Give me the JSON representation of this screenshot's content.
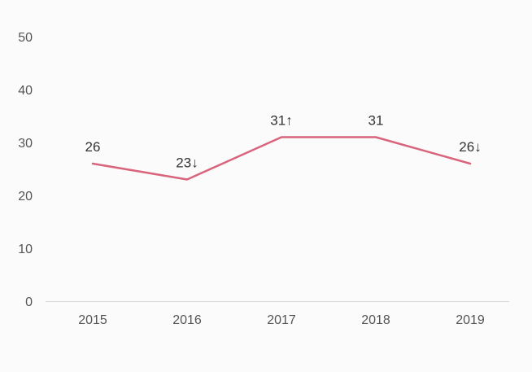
{
  "chart_data": {
    "type": "line",
    "categories": [
      "2015",
      "2016",
      "2017",
      "2018",
      "2019"
    ],
    "series": [
      {
        "values": [
          26,
          23,
          31,
          31,
          26
        ],
        "labels": [
          "26",
          "23↓",
          "31↑",
          "31",
          "26↓"
        ],
        "color": "#d9657d"
      }
    ],
    "y_ticks": [
      "0",
      "10",
      "20",
      "30",
      "40",
      "50"
    ],
    "ylim": [
      0,
      50
    ],
    "grid": false,
    "legend": "none"
  },
  "colors": {
    "background": "#fcfbfc",
    "axis": "#d8d8d8",
    "line": "#d9657d"
  }
}
